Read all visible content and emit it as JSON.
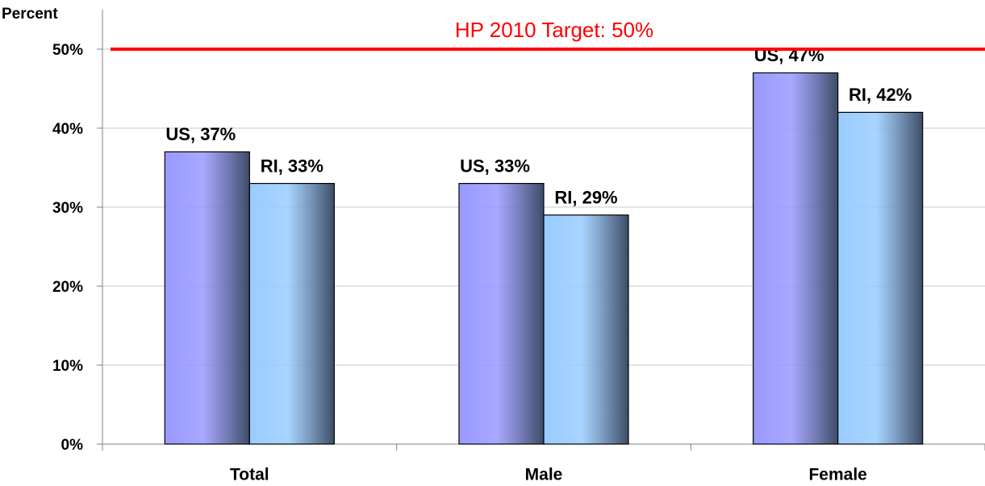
{
  "chart_data": {
    "type": "bar",
    "y_axis_label": "Percent",
    "categories": [
      "Total",
      "Male",
      "Female"
    ],
    "series": [
      {
        "name": "US",
        "color": "#9999ff",
        "values": [
          37,
          33,
          47
        ],
        "value_labels": [
          "US, 37%",
          "US, 33%",
          "US, 47%"
        ]
      },
      {
        "name": "RI",
        "color": "#99ccff",
        "values": [
          33,
          29,
          42
        ],
        "value_labels": [
          "RI, 33%",
          "RI, 29%",
          "RI, 42%"
        ]
      }
    ],
    "target": {
      "value": 50,
      "label": "HP 2010 Target: 50%",
      "color": "#ff0000"
    },
    "ylim": [
      0,
      55
    ],
    "yticks": [
      {
        "value": 0,
        "label": "0%"
      },
      {
        "value": 10,
        "label": "10%"
      },
      {
        "value": 20,
        "label": "20%"
      },
      {
        "value": 30,
        "label": "30%"
      },
      {
        "value": 40,
        "label": "40%"
      },
      {
        "value": 50,
        "label": "50%"
      }
    ],
    "grid": true
  }
}
